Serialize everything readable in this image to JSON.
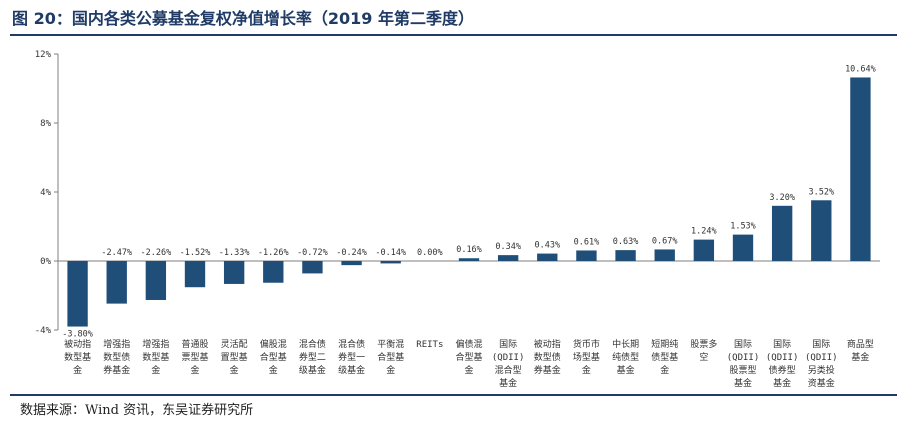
{
  "title": "图 20：国内各类公募基金复权净值增长率（2019 年第二季度）",
  "source": "数据来源：Wind 资讯，东吴证券研究所",
  "colors": {
    "bar": "#1f4e79",
    "axis": "#7f7f7f",
    "accent": "#1f3b66"
  },
  "chart_data": {
    "type": "bar",
    "title": "",
    "xlabel": "",
    "ylabel": "",
    "ylim": [
      -4,
      12
    ],
    "yticks": [
      "12%",
      "8%",
      "4%",
      "0%",
      "-4%"
    ],
    "grid": false,
    "categories": [
      "被动指数型基金",
      "增强指数型债券基金",
      "增强指数型基金",
      "普通股票型基金",
      "灵活配置型基金",
      "偏股混合型基金",
      "混合债券型二级基金",
      "混合债券型一级基金",
      "平衡混合型基金",
      "REITs",
      "偏债混合型基金",
      "国际(QDII)混合型基金",
      "被动指数型债券基金",
      "货币市场型基金",
      "中长期纯债型基金",
      "短期纯债型基金",
      "股票多空",
      "国际(QDII)股票型基金",
      "国际(QDII)债券型基金",
      "国际(QDII)另类投资基金",
      "商品型基金"
    ],
    "category_lines": [
      [
        "被动指",
        "数型基",
        "金"
      ],
      [
        "增强指",
        "数型债",
        "券基金"
      ],
      [
        "增强指",
        "数型基",
        "金"
      ],
      [
        "普通股",
        "票型基",
        "金"
      ],
      [
        "灵活配",
        "置型基",
        "金"
      ],
      [
        "偏股混",
        "合型基",
        "金"
      ],
      [
        "混合债",
        "券型二",
        "级基金"
      ],
      [
        "混合债",
        "券型一",
        "级基金"
      ],
      [
        "平衡混",
        "合型基",
        "金"
      ],
      [
        "REITs"
      ],
      [
        "偏债混",
        "合型基",
        "金"
      ],
      [
        "国际",
        "(QDII)",
        "混合型",
        "基金"
      ],
      [
        "被动指",
        "数型债",
        "券基金"
      ],
      [
        "货币市",
        "场型基",
        "金"
      ],
      [
        "中长期",
        "纯债型",
        "基金"
      ],
      [
        "短期纯",
        "债型基",
        "金"
      ],
      [
        "股票多",
        "空"
      ],
      [
        "国际",
        "(QDII)",
        "股票型",
        "基金"
      ],
      [
        "国际",
        "(QDII)",
        "债券型",
        "基金"
      ],
      [
        "国际",
        "(QDII)",
        "另类投",
        "资基金"
      ],
      [
        "商品型",
        "基金"
      ]
    ],
    "values": [
      -3.8,
      -2.47,
      -2.26,
      -1.52,
      -1.33,
      -1.26,
      -0.72,
      -0.24,
      -0.14,
      0.0,
      0.16,
      0.34,
      0.43,
      0.61,
      0.63,
      0.67,
      1.24,
      1.53,
      3.2,
      3.52,
      10.64
    ],
    "value_labels": [
      "-3.80%",
      "-2.47%",
      "-2.26%",
      "-1.52%",
      "-1.33%",
      "-1.26%",
      "-0.72%",
      "-0.24%",
      "-0.14%",
      "0.00%",
      "0.16%",
      "0.34%",
      "0.43%",
      "0.61%",
      "0.63%",
      "0.67%",
      "1.24%",
      "1.53%",
      "3.20%",
      "3.52%",
      "10.64%"
    ]
  }
}
